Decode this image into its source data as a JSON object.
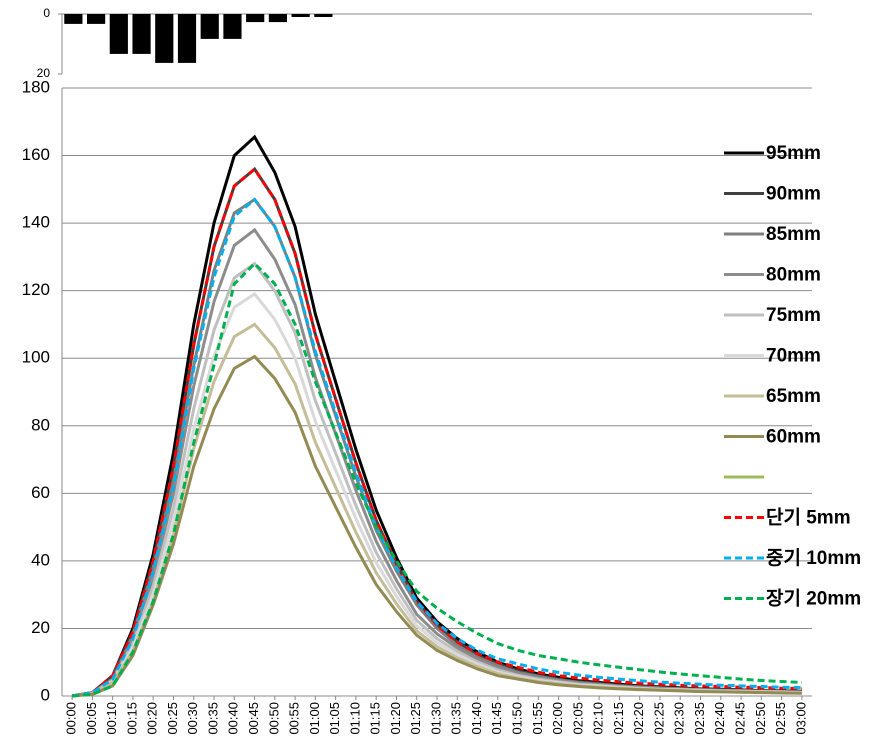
{
  "chart_data": [
    {
      "type": "bar",
      "color": "#000000",
      "y_inverted": true,
      "categories": [
        null,
        null,
        null,
        null,
        null,
        null,
        null,
        null,
        null,
        null,
        null,
        null,
        null,
        null,
        null,
        null,
        null,
        null,
        null,
        null,
        null,
        null,
        null,
        null,
        null,
        null,
        null,
        null,
        null,
        null,
        null,
        null,
        null
      ],
      "values": [
        3.3,
        3.3,
        13.3,
        13.3,
        16.3,
        16.3,
        8.3,
        8.3,
        2.7,
        2.7,
        1,
        1,
        0,
        0,
        0,
        0,
        0,
        0,
        0,
        0,
        0,
        0,
        0,
        0,
        0,
        0,
        0,
        0,
        0,
        0,
        0,
        0,
        0
      ],
      "ylim": [
        0,
        20
      ],
      "yticks": [
        0,
        20
      ]
    },
    {
      "type": "line",
      "grid": true,
      "legend": "right",
      "categories": [
        "00:00",
        "00:05",
        "00:10",
        "00:15",
        "00:20",
        "00:25",
        "00:30",
        "00:35",
        "00:40",
        "00:45",
        "00:50",
        "00:55",
        "01:00",
        "01:05",
        "01:10",
        "01:15",
        "01:20",
        "01:25",
        "01:30",
        "01:35",
        "01:40",
        "01:45",
        "01:50",
        "01:55",
        "02:00",
        "02:05",
        "02:10",
        "02:15",
        "02:20",
        "02:25",
        "02:30",
        "02:35",
        "02:40",
        "02:45",
        "02:50",
        "02:55",
        "03:00"
      ],
      "ylim": [
        0,
        180
      ],
      "yticks": [
        0,
        20,
        40,
        60,
        80,
        100,
        120,
        140,
        160,
        180
      ],
      "series": [
        {
          "name": "95mm",
          "color": "#000000",
          "dash": false,
          "values": [
            0,
            1,
            6,
            20,
            42,
            72,
            110,
            140,
            160,
            165.5,
            155,
            139,
            113,
            93,
            73,
            55,
            41,
            29,
            22,
            17,
            13,
            10,
            8,
            6.5,
            5.5,
            4.5,
            4,
            3.5,
            3,
            2.7,
            2.4,
            2.1,
            2,
            1.8,
            1.6,
            1.5,
            1.4
          ]
        },
        {
          "name": "90mm",
          "color": "#404040",
          "dash": false,
          "values": [
            0,
            1,
            6,
            19,
            40,
            68,
            104,
            133,
            151,
            156,
            147,
            131,
            107,
            88,
            69,
            52,
            39,
            28,
            21,
            16,
            12,
            9.5,
            7.5,
            6,
            5,
            4.2,
            3.7,
            3.2,
            2.8,
            2.5,
            2.2,
            2,
            1.8,
            1.7,
            1.5,
            1.4,
            1.3
          ]
        },
        {
          "name": "85mm",
          "color": "#7f7f7f",
          "dash": false,
          "values": [
            0,
            1,
            5,
            18,
            38,
            64,
            98,
            126,
            143,
            147,
            139,
            124,
            101,
            83,
            65,
            49,
            37,
            27,
            20,
            15,
            11.5,
            9,
            7,
            5.8,
            4.8,
            4,
            3.5,
            3,
            2.7,
            2.4,
            2.1,
            1.9,
            1.7,
            1.6,
            1.4,
            1.3,
            1.2
          ]
        },
        {
          "name": "80mm",
          "color": "#8c8c8c",
          "dash": false,
          "values": [
            0,
            0.8,
            5,
            16.7,
            35,
            60,
            91.8,
            116.7,
            133.4,
            138,
            129.3,
            115.9,
            94.3,
            77.6,
            60.9,
            45.8,
            34.2,
            24.2,
            18.4,
            14.2,
            10.9,
            8.3,
            6.6,
            5.4,
            4.6,
            3.7,
            3.3,
            2.9,
            2.5,
            2.2,
            2.1,
            1.8,
            1.7,
            1.5,
            1.4,
            1.2,
            1.1
          ]
        },
        {
          "name": "75mm",
          "color": "#bfbfbf",
          "dash": false,
          "values": [
            0,
            0.8,
            4.6,
            15.5,
            32.5,
            55.7,
            85.1,
            108.3,
            123.8,
            128,
            119.9,
            107.5,
            87.4,
            71.9,
            56.4,
            42.5,
            31.7,
            22.4,
            17,
            13.2,
            10.1,
            7.7,
            6.1,
            5,
            4.2,
            3.5,
            3.1,
            2.7,
            2.3,
            2,
            1.9,
            1.7,
            1.5,
            1.4,
            1.3,
            1.2,
            1
          ]
        },
        {
          "name": "70mm",
          "color": "#d9d9d9",
          "dash": false,
          "values": [
            0,
            0.7,
            4.3,
            14.4,
            30.2,
            51.8,
            79.1,
            100.7,
            115.1,
            119,
            111.5,
            100,
            81.3,
            66.9,
            52.5,
            39.5,
            29.5,
            20.8,
            15.8,
            12.3,
            9.4,
            7.1,
            5.7,
            4.6,
            3.9,
            3.2,
            2.9,
            2.5,
            2.1,
            1.9,
            1.8,
            1.5,
            1.4,
            1.3,
            1.2,
            1.1,
            1
          ]
        },
        {
          "name": "65mm",
          "color": "#c4bd97",
          "dash": false,
          "values": [
            0,
            0.7,
            4,
            13.3,
            27.9,
            47.9,
            73.2,
            93.1,
            106.4,
            110,
            103.1,
            92.4,
            75.1,
            61.8,
            48.5,
            36.5,
            27.3,
            19.3,
            14.6,
            11.3,
            8.7,
            6.6,
            5.3,
            4.3,
            3.6,
            3,
            2.6,
            2.3,
            2,
            1.8,
            1.7,
            1.4,
            1.3,
            1.2,
            1.1,
            1,
            0.9
          ]
        },
        {
          "name": "60mm",
          "color": "#948a54",
          "dash": false,
          "values": [
            0,
            0.5,
            3,
            12,
            27,
            45,
            68,
            85,
            97,
            100.5,
            94,
            84,
            68,
            56,
            44,
            33,
            25,
            18,
            13.5,
            10.5,
            8,
            6,
            5,
            4,
            3.3,
            2.8,
            2.4,
            2.1,
            1.9,
            1.7,
            1.5,
            1.3,
            1.2,
            1.1,
            1,
            0.9,
            0.8
          ]
        },
        {
          "name": null,
          "color": "#9bbb59",
          "dash": false,
          "values": [
            null,
            null,
            null,
            null,
            null,
            null,
            null,
            null,
            null,
            null,
            null,
            null,
            null,
            null,
            null,
            null,
            null,
            null,
            null,
            null,
            null,
            null,
            null,
            null,
            null,
            null,
            null,
            null,
            null,
            null,
            null,
            null,
            null,
            null,
            null,
            null,
            null
          ]
        },
        {
          "name": "단기 5mm",
          "color": "#ff0000",
          "dash": true,
          "values": [
            0,
            1,
            6,
            19,
            40,
            68,
            104,
            133,
            151,
            156,
            147,
            131,
            107,
            88,
            69,
            52,
            39,
            28,
            21,
            16,
            12.5,
            10,
            8.5,
            7,
            6,
            5.3,
            4.7,
            4.2,
            3.8,
            3.5,
            3.2,
            3,
            2.8,
            2.6,
            2.5,
            2.3,
            2.2
          ]
        },
        {
          "name": "중기 10mm",
          "color": "#00b0f0",
          "dash": true,
          "values": [
            0,
            1,
            5,
            17,
            37,
            62,
            97,
            124,
            142,
            147,
            139,
            124,
            102,
            84,
            66,
            50,
            38,
            28,
            21.5,
            17,
            13.5,
            11,
            9.5,
            8,
            7,
            6.2,
            5.5,
            5,
            4.5,
            4.1,
            3.8,
            3.5,
            3.2,
            3,
            2.8,
            2.6,
            2.5
          ]
        },
        {
          "name": "장기 20mm",
          "color": "#00b050",
          "dash": true,
          "values": [
            0,
            0.5,
            3,
            13,
            28,
            48,
            75,
            98,
            122,
            128,
            122,
            110,
            93,
            78,
            63,
            50,
            40,
            31,
            26,
            22,
            18.5,
            15.5,
            13.5,
            12,
            11,
            10,
            9.2,
            8.5,
            7.8,
            7.1,
            6.5,
            6,
            5.5,
            5,
            4.6,
            4.3,
            4
          ]
        }
      ]
    }
  ]
}
